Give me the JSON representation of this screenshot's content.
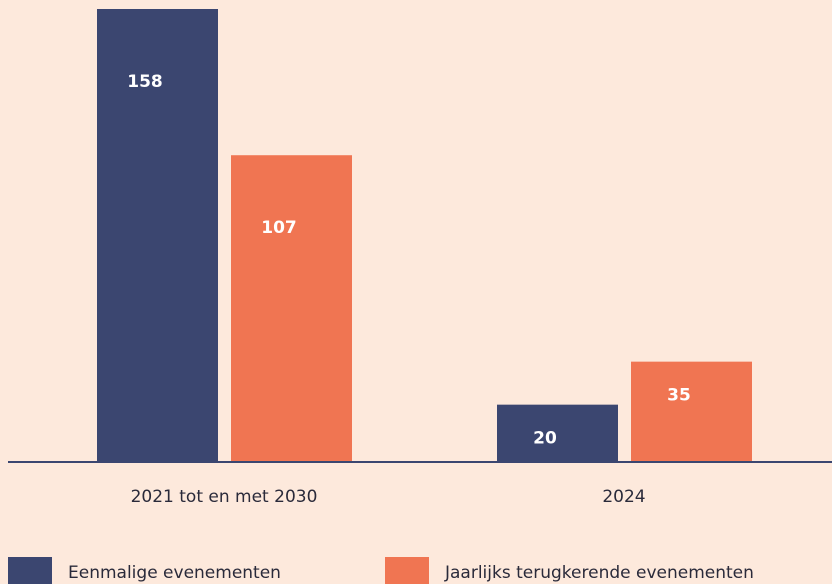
{
  "chart_data": {
    "type": "bar",
    "categories": [
      "2021 tot en met 2030",
      "2024"
    ],
    "series": [
      {
        "name": "Eenmalige evenementen",
        "color": "#3b4670",
        "values": [
          158,
          20
        ]
      },
      {
        "name": "Jaarlijks terugkerende evenementen",
        "color": "#f07552",
        "values": [
          107,
          35
        ]
      }
    ],
    "ylim": [
      0,
      158
    ]
  }
}
